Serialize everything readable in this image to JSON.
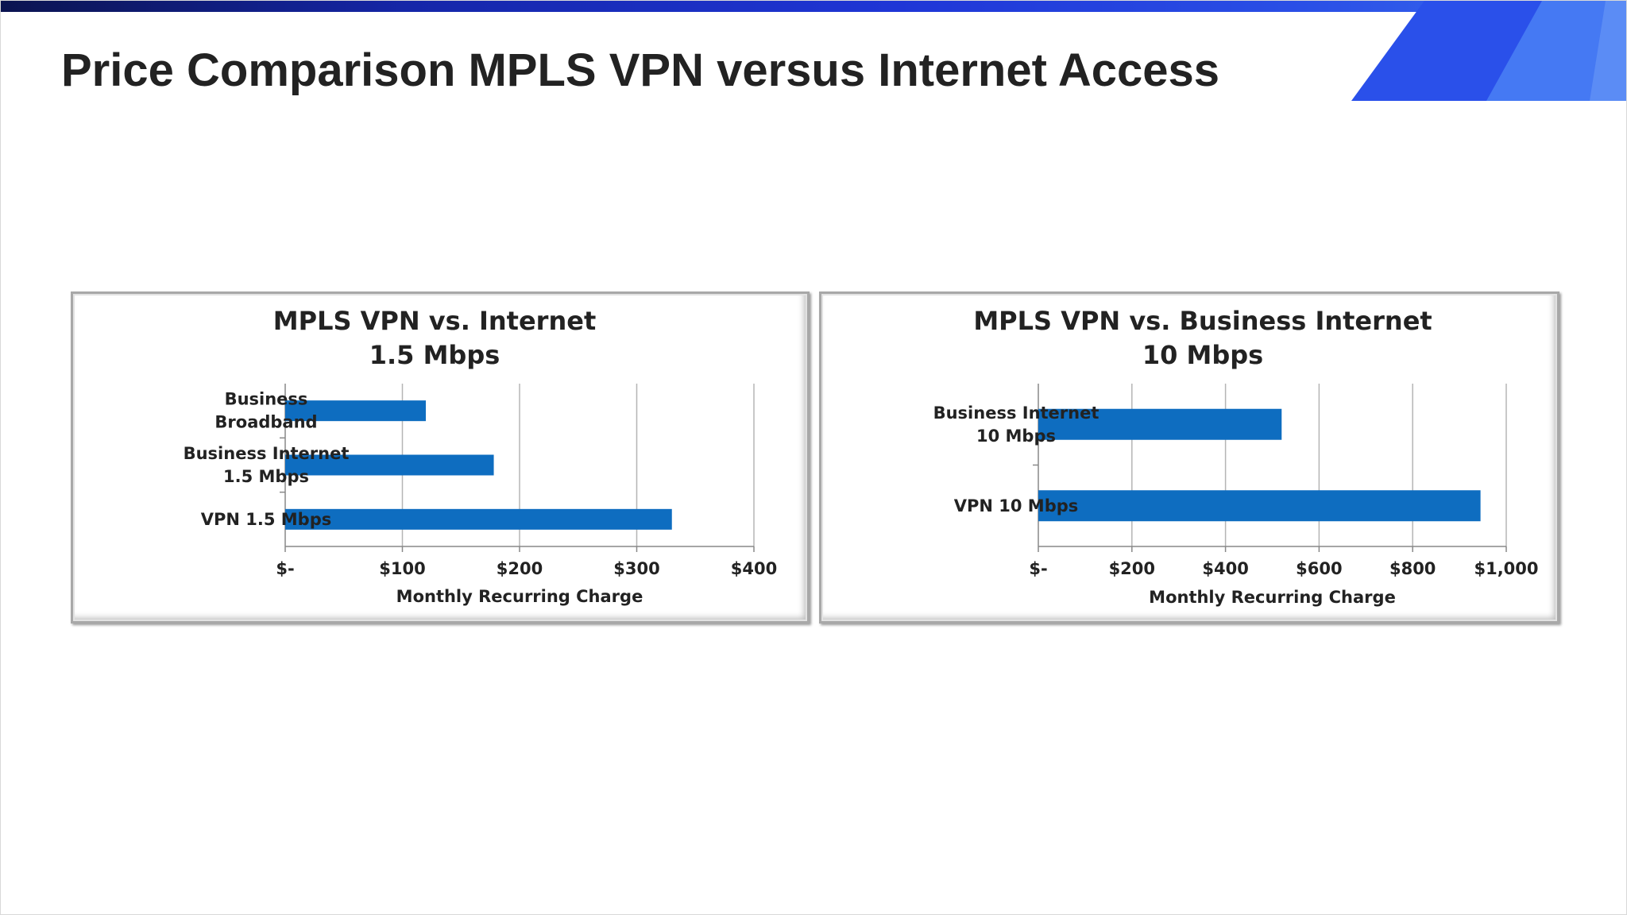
{
  "slide": {
    "title": "Price Comparison MPLS VPN versus Internet Access",
    "accent_colors": [
      "#1a2cc4",
      "#2f5cf0",
      "#4a7ff5"
    ]
  },
  "chart_data": [
    {
      "type": "bar",
      "orientation": "horizontal",
      "title": "MPLS VPN vs. Internet",
      "subtitle": "1.5 Mbps",
      "categories": [
        [
          "Business",
          "Broadband"
        ],
        [
          "Business Internet",
          "1.5 Mbps"
        ],
        [
          "VPN 1.5 Mbps"
        ]
      ],
      "values": [
        120,
        178,
        330
      ],
      "xlabel": "Monthly Recurring Charge",
      "xlim": [
        0,
        400
      ],
      "xticks": [
        0,
        100,
        200,
        300,
        400
      ],
      "xtick_labels": [
        "$-",
        "$100",
        "$200",
        "$300",
        "$400"
      ],
      "grid": true,
      "legend": "none",
      "bar_color": "#0e6dc0"
    },
    {
      "type": "bar",
      "orientation": "horizontal",
      "title": "MPLS VPN vs. Business Internet",
      "subtitle": "10 Mbps",
      "categories": [
        [
          "Business Internet",
          "10 Mbps"
        ],
        [
          "VPN 10 Mbps"
        ]
      ],
      "values": [
        520,
        945
      ],
      "xlabel": "Monthly Recurring Charge",
      "xlim": [
        0,
        1000
      ],
      "xticks": [
        0,
        200,
        400,
        600,
        800,
        1000
      ],
      "xtick_labels": [
        "$-",
        "$200",
        "$400",
        "$600",
        "$800",
        "$1,000"
      ],
      "grid": true,
      "legend": "none",
      "bar_color": "#0e6dc0"
    }
  ]
}
